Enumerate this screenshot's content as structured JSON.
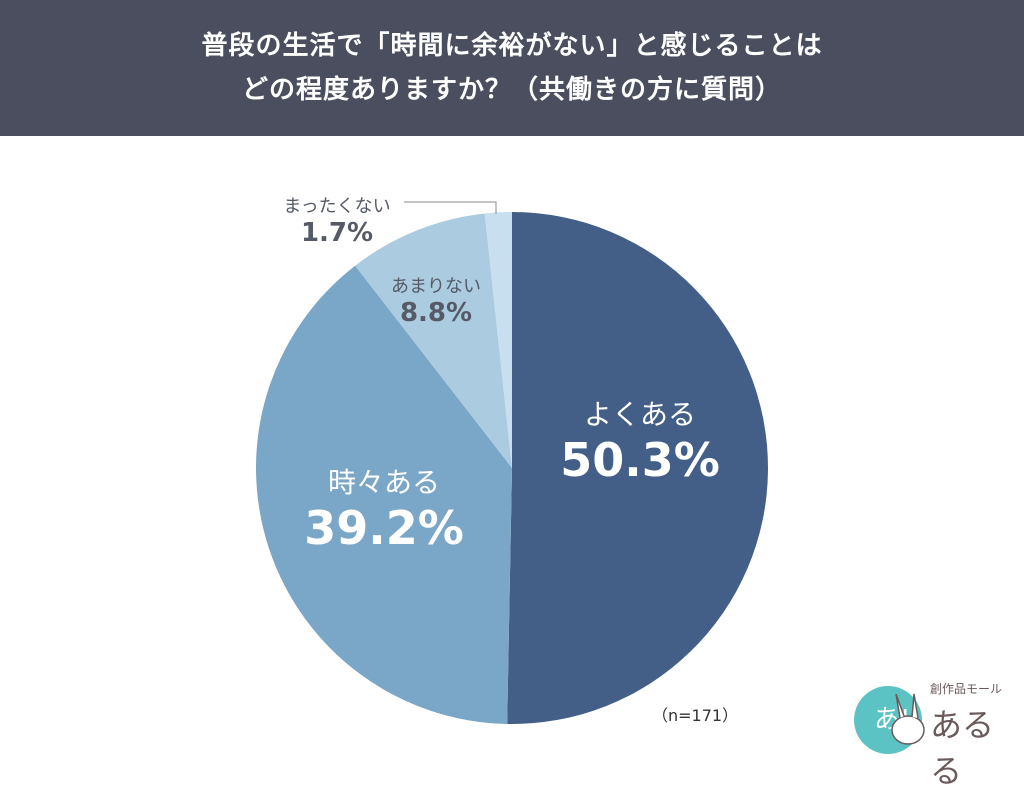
{
  "header": {
    "line1": "普段の生活で「時間に余裕がない」と感じることは",
    "line2": "どの程度ありますか？（共働きの方に質問）"
  },
  "chart_data": {
    "type": "pie",
    "title": "普段の生活で「時間に余裕がない」と感じることはどの程度ありますか？（共働きの方に質問）",
    "start": "12 o'clock, clockwise",
    "categories": [
      "よくある",
      "時々ある",
      "あまりない",
      "まったくない"
    ],
    "values": [
      50.3,
      39.2,
      8.8,
      1.7
    ],
    "labels": [
      "50.3%",
      "39.2%",
      "8.8%",
      "1.7%"
    ],
    "colors": [
      "#435f87",
      "#7aa6c7",
      "#aacbe0",
      "#c7dfee"
    ],
    "note": "（n=171）"
  },
  "logo": {
    "tagline": "創作品モール",
    "name": "あるる",
    "mark": "あ!"
  }
}
